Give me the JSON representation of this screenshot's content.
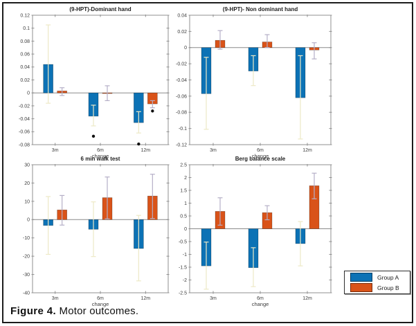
{
  "figure": {
    "caption_bold": "Figure 4.",
    "caption_text": " Motor outcomes."
  },
  "legend": {
    "items": [
      {
        "label": "Group A",
        "color": "#0C72B5"
      },
      {
        "label": "Group B",
        "color": "#D95319"
      }
    ]
  },
  "colors": {
    "group_a": "#0C72B5",
    "group_b": "#D95319",
    "whisker_a": "#EDE9C6",
    "whisker_b": "#B5AFC7",
    "axis": "#8F8F8F",
    "zero_line": "#8A8A8A",
    "tick_text": "#3C3C3C",
    "title_text": "#1E1E1E",
    "outlier": "#111111"
  },
  "chart_data": [
    {
      "type": "bar",
      "title": "(9-HPT)-Dominant hand",
      "xlabel": "change",
      "categories": [
        "3m",
        "6m",
        "12m"
      ],
      "ylim": [
        -0.08,
        0.12
      ],
      "ytick_values": [
        0.12,
        0.1,
        0.08,
        0.06,
        0.04,
        0.02,
        0,
        -0.02,
        -0.04,
        -0.06,
        -0.08
      ],
      "ytick_labels": [
        "0.12",
        "0.1",
        "0.08",
        "0.06",
        "0.04",
        "0.02",
        "0",
        "-0.02",
        "-0.04",
        "-0.06",
        "-0.08"
      ],
      "grid": false,
      "series": [
        {
          "name": "Group A",
          "values": [
            0.044,
            -0.036,
            -0.046
          ],
          "errors": [
            [
              -0.016,
              0.105
            ],
            [
              -0.051,
              -0.019
            ],
            [
              -0.062,
              -0.029
            ]
          ]
        },
        {
          "name": "Group B",
          "values": [
            0.003,
            -0.001,
            -0.017
          ],
          "errors": [
            [
              -0.004,
              0.008
            ],
            [
              -0.012,
              0.011
            ],
            [
              -0.023,
              -0.012
            ]
          ]
        }
      ],
      "outliers": [
        {
          "category": 1,
          "series": 0,
          "value": -0.067
        },
        {
          "category": 2,
          "series": 0,
          "value": -0.079
        },
        {
          "category": 2,
          "series": 1,
          "value": -0.028
        }
      ]
    },
    {
      "type": "bar",
      "title": "(9-HPT)- Non dominant hand",
      "xlabel": "change",
      "categories": [
        "3m",
        "6m",
        "12m"
      ],
      "ylim": [
        -0.12,
        0.04
      ],
      "ytick_values": [
        0.04,
        0.02,
        0,
        -0.02,
        -0.04,
        -0.06,
        -0.08,
        -0.1,
        -0.12
      ],
      "ytick_labels": [
        "0.04",
        "0.02",
        "0",
        "-0.02",
        "-0.04",
        "-0.06",
        "-0.08",
        "-0.1",
        "-0.12"
      ],
      "grid": false,
      "series": [
        {
          "name": "Group A",
          "values": [
            -0.057,
            -0.029,
            -0.062
          ],
          "errors": [
            [
              -0.101,
              -0.012
            ],
            [
              -0.047,
              -0.01
            ],
            [
              -0.113,
              -0.01
            ]
          ]
        },
        {
          "name": "Group B",
          "values": [
            0.009,
            0.007,
            -0.003
          ],
          "errors": [
            [
              -0.002,
              0.021
            ],
            [
              0.0,
              0.016
            ],
            [
              -0.014,
              0.006
            ]
          ]
        }
      ],
      "outliers": []
    },
    {
      "type": "bar",
      "title": "6 min walk test",
      "xlabel": "change",
      "categories": [
        "3m",
        "6m",
        "12m"
      ],
      "ylim": [
        -40,
        30
      ],
      "ytick_values": [
        30,
        20,
        10,
        0,
        -10,
        -20,
        -30,
        -40
      ],
      "ytick_labels": [
        "30",
        "20",
        "10",
        "0",
        "-10",
        "-20",
        "-30",
        "-40"
      ],
      "grid": false,
      "series": [
        {
          "name": "Group A",
          "values": [
            -3.2,
            -5.3,
            -15.8
          ],
          "errors": [
            [
              -19,
              12.6
            ],
            [
              -20.2,
              9.7
            ],
            [
              -33.5,
              2.3
            ]
          ]
        },
        {
          "name": "Group B",
          "values": [
            5.3,
            12,
            12.9
          ],
          "errors": [
            [
              -3,
              13.2
            ],
            [
              0.4,
              23.3
            ],
            [
              0.6,
              24.8
            ]
          ]
        }
      ],
      "outliers": []
    },
    {
      "type": "bar",
      "title": "Berg balance scale",
      "xlabel": "change",
      "categories": [
        "3m",
        "6m",
        "12m"
      ],
      "ylim": [
        -2.5,
        2.5
      ],
      "ytick_values": [
        2.5,
        2,
        1.5,
        1,
        0.5,
        0,
        -0.5,
        -1,
        -1.5,
        -2,
        -2.5
      ],
      "ytick_labels": [
        "2.5",
        "2",
        "1.5",
        "1",
        "0.5",
        "0",
        "-0.5",
        "-1",
        "-1.5",
        "-2",
        "-2.5"
      ],
      "grid": false,
      "series": [
        {
          "name": "Group A",
          "values": [
            -1.45,
            -1.52,
            -0.58
          ],
          "errors": [
            [
              -2.36,
              -0.52
            ],
            [
              -2.26,
              -0.74
            ],
            [
              -1.45,
              0.28
            ]
          ]
        },
        {
          "name": "Group B",
          "values": [
            0.68,
            0.63,
            1.68
          ],
          "errors": [
            [
              0.14,
              1.21
            ],
            [
              0.35,
              0.9
            ],
            [
              1.17,
              2.17
            ]
          ]
        }
      ],
      "outliers": []
    }
  ]
}
